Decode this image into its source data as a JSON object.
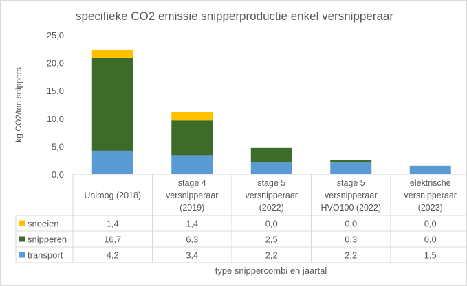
{
  "chart_data": {
    "type": "bar",
    "stacked": true,
    "title": "specifieke CO2 emissie snipperproductie enkel versnipperaar",
    "xlabel": "type snippercombi en jaartal",
    "ylabel": "kg CO2/ton snippers",
    "ylim": [
      0,
      25
    ],
    "yticks": [
      "0,0",
      "5,0",
      "10,0",
      "15,0",
      "20,0",
      "25,0"
    ],
    "categories": [
      [
        "Unimog (2018)"
      ],
      [
        "stage 4",
        "versnipperaar",
        "(2019)"
      ],
      [
        "stage 5",
        "versnipperaar",
        "(2022)"
      ],
      [
        "stage 5",
        "versnipperaar",
        "HVO100 (2022)"
      ],
      [
        "elektrische",
        "versnipperaar",
        "(2023)"
      ]
    ],
    "series": [
      {
        "name": "snoeien",
        "color": "#FFC000",
        "values": [
          1.4,
          1.4,
          0.0,
          0.0,
          0.0
        ],
        "labels": [
          "1,4",
          "1,4",
          "0,0",
          "0,0",
          "0,0"
        ]
      },
      {
        "name": "snipperen",
        "color": "#3D6B2A",
        "values": [
          16.7,
          6.3,
          2.5,
          0.3,
          0.0
        ],
        "labels": [
          "16,7",
          "6,3",
          "2,5",
          "0,3",
          "0,0"
        ]
      },
      {
        "name": "transport",
        "color": "#5B9BD5",
        "values": [
          4.2,
          3.4,
          2.2,
          2.2,
          1.5
        ],
        "labels": [
          "4,2",
          "3,4",
          "2,2",
          "2,2",
          "1,5"
        ]
      }
    ],
    "stack_order_bottom_to_top": [
      "transport",
      "snipperen",
      "snoeien"
    ],
    "legend": "data-table-left",
    "grid": false
  }
}
